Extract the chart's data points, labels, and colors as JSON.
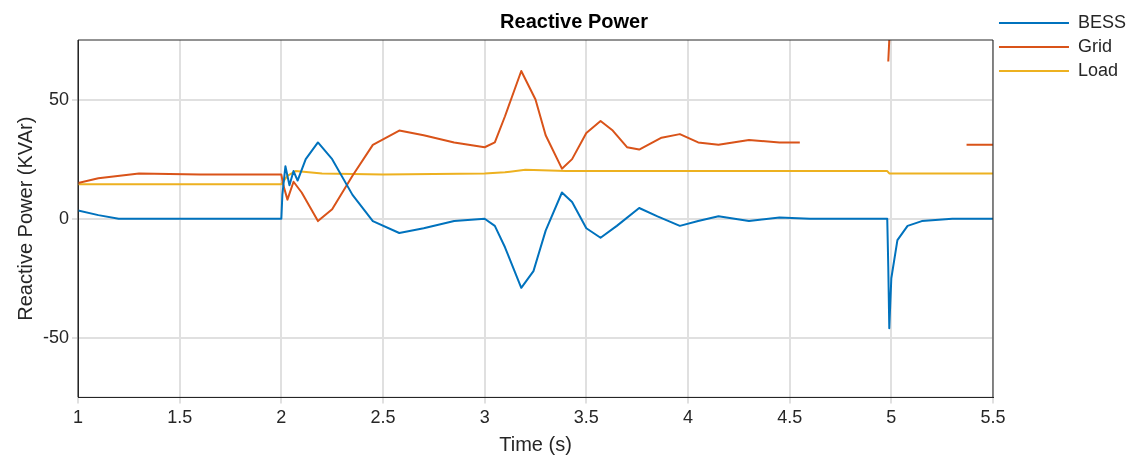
{
  "chart_data": {
    "type": "line",
    "title": "Reactive Power",
    "xlabel": "Time (s)",
    "ylabel": "Reactive Power (KVAr)",
    "xlim": [
      1,
      5.5
    ],
    "xticks": [
      1,
      1.5,
      2,
      2.5,
      3,
      3.5,
      4,
      4.5,
      5,
      5.5
    ],
    "ylim": [
      -75,
      75
    ],
    "yticks": [
      -50,
      0,
      50
    ],
    "grid": true,
    "legend": "top right",
    "marker": "none",
    "line_style": "solid",
    "series": [
      {
        "name": "BESS",
        "color": "#0072bd",
        "x": [
          1,
          1.1,
          1.2,
          1.5,
          2,
          2.005,
          2.02,
          2.04,
          2.06,
          2.08,
          2.12,
          2.18,
          2.25,
          2.35,
          2.45,
          2.58,
          2.7,
          2.85,
          3.0,
          3.05,
          3.1,
          3.18,
          3.24,
          3.3,
          3.38,
          3.43,
          3.5,
          3.57,
          3.65,
          3.76,
          3.85,
          3.96,
          4.05,
          4.15,
          4.3,
          4.45,
          4.6,
          4.8,
          4.98,
          4.985,
          4.99,
          5.0,
          5.03,
          5.08,
          5.15,
          5.3,
          5.5
        ],
        "values": [
          3.5,
          1.5,
          0,
          0,
          0,
          10,
          22,
          14,
          20,
          16,
          25,
          32,
          25,
          10,
          -1,
          -6,
          -4,
          -1,
          0,
          -3,
          -12,
          -29,
          -22,
          -5,
          11,
          7,
          -4,
          -8,
          -3,
          4.5,
          1,
          -3,
          -1,
          1,
          -1,
          0.5,
          0,
          0,
          0,
          -20,
          -46,
          -25,
          -9,
          -3,
          -1,
          0,
          0
        ]
      },
      {
        "name": "Grid",
        "color": "#d95319",
        "x": [
          1,
          1.1,
          1.3,
          1.6,
          2,
          2.01,
          2.03,
          2.06,
          2.1,
          2.18,
          2.25,
          2.35,
          2.45,
          2.58,
          2.7,
          2.85,
          3.0,
          3.05,
          3.1,
          3.18,
          3.25,
          3.3,
          3.38,
          3.43,
          3.5,
          3.57,
          3.63,
          3.7,
          3.76,
          3.87,
          3.96,
          4.05,
          4.15,
          4.3,
          4.45,
          4.55,
          4.6,
          4.985,
          4.99,
          4.995,
          5.37,
          5.5
        ],
        "values": [
          15,
          17,
          19,
          18.5,
          18.5,
          14,
          8,
          15.5,
          11,
          -1,
          4,
          18,
          31,
          37,
          35,
          32,
          30,
          32,
          43,
          62,
          50,
          35,
          21,
          25,
          36,
          41,
          37,
          30,
          29,
          34,
          35.5,
          32,
          31,
          33,
          32,
          32,
          null,
          66,
          75,
          null,
          31,
          31
        ]
      },
      {
        "name": "Load",
        "color": "#edb120",
        "x": [
          1,
          1.5,
          2,
          2.03,
          2.07,
          2.2,
          2.5,
          3.0,
          3.1,
          3.2,
          3.4,
          3.8,
          4.5,
          4.98,
          4.99,
          5.5
        ],
        "values": [
          14.5,
          14.5,
          14.5,
          18,
          20,
          19,
          18.5,
          19,
          19.5,
          20.5,
          20,
          20,
          20,
          20,
          19,
          19
        ]
      }
    ]
  }
}
